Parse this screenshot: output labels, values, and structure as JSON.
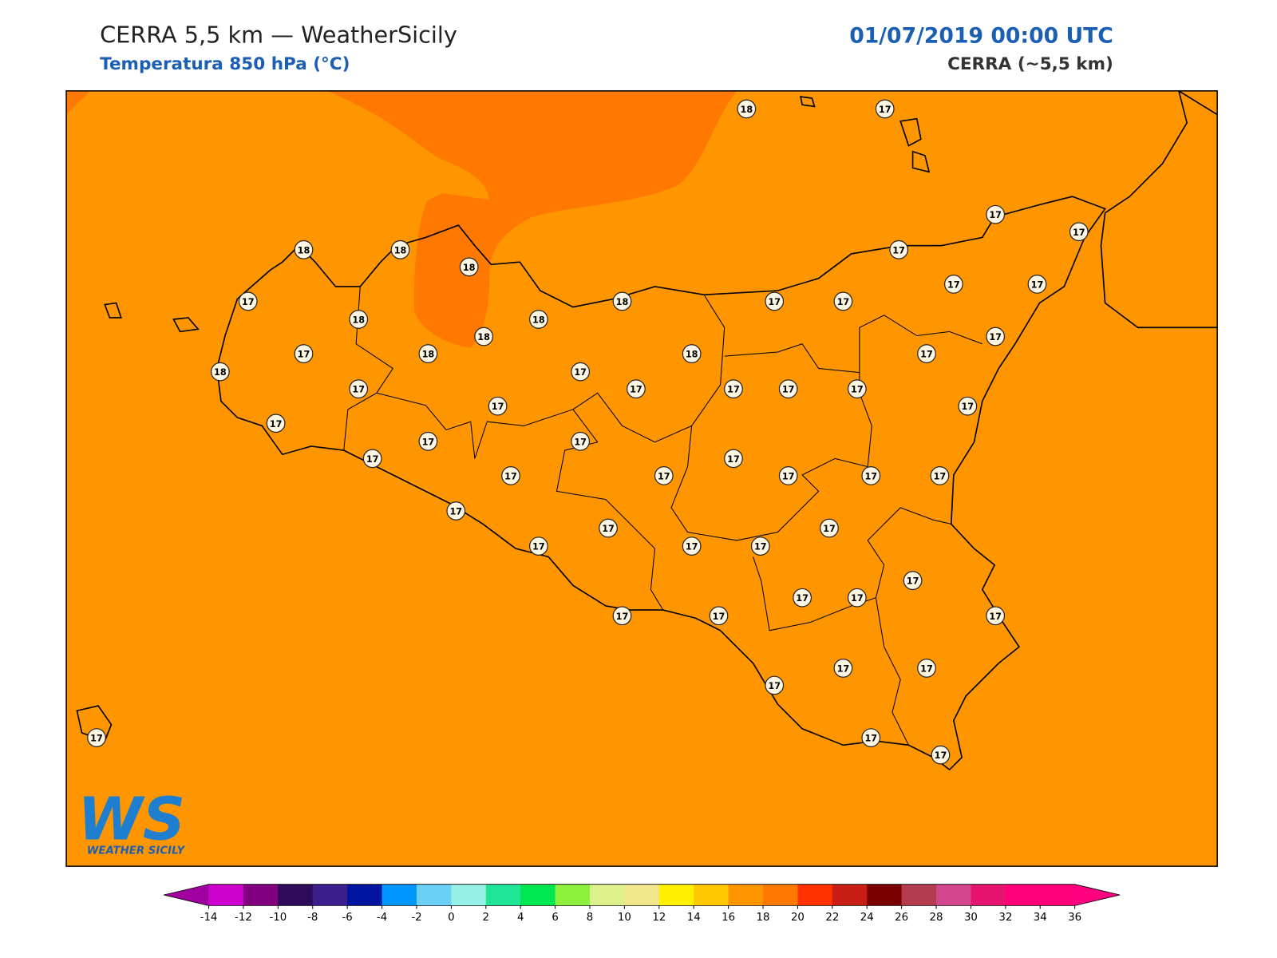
{
  "header": {
    "title": "CERRA 5,5 km — WeatherSicily",
    "subtitle": "Temperatura 850 hPa (°C)",
    "datetime": "01/07/2019 00:00 UTC",
    "source": "CERRA (~5,5 km)"
  },
  "logo": {
    "mark": "WS",
    "name": "WEATHER SICILY"
  },
  "stations": {
    "values": [
      18,
      17,
      17,
      17,
      18,
      18,
      18,
      17,
      17,
      17,
      17,
      17,
      17,
      18,
      18,
      18,
      18,
      17,
      17,
      18,
      18,
      17,
      18,
      17,
      17,
      17,
      17,
      17,
      17,
      17,
      17,
      17,
      17,
      17,
      17,
      17,
      17,
      17,
      17,
      17,
      17,
      17,
      17,
      17,
      17,
      17,
      17,
      17,
      17,
      17,
      17,
      17,
      17,
      17,
      17,
      17,
      17,
      17,
      17
    ]
  },
  "colorbar": {
    "ticks": [
      -14,
      -12,
      -10,
      -8,
      -6,
      -4,
      -2,
      0,
      2,
      4,
      6,
      8,
      10,
      12,
      14,
      16,
      18,
      20,
      22,
      24,
      26,
      28,
      30,
      32,
      34,
      36
    ],
    "colors": [
      "#cc00cc",
      "#800080",
      "#2e0a5a",
      "#3c1e8c",
      "#0014a0",
      "#0096ff",
      "#6ccff6",
      "#96f0e6",
      "#1ee696",
      "#00e650",
      "#8cf03c",
      "#dcf08c",
      "#f0e68c",
      "#fff000",
      "#ffc800",
      "#ff9600",
      "#ff7800",
      "#ff3200",
      "#c81e14",
      "#780000",
      "#b43c50",
      "#d2468c",
      "#e6146e",
      "#ff0078",
      "#ff0078"
    ],
    "under_color": "#a000a0",
    "over_color": "#ff0080"
  }
}
